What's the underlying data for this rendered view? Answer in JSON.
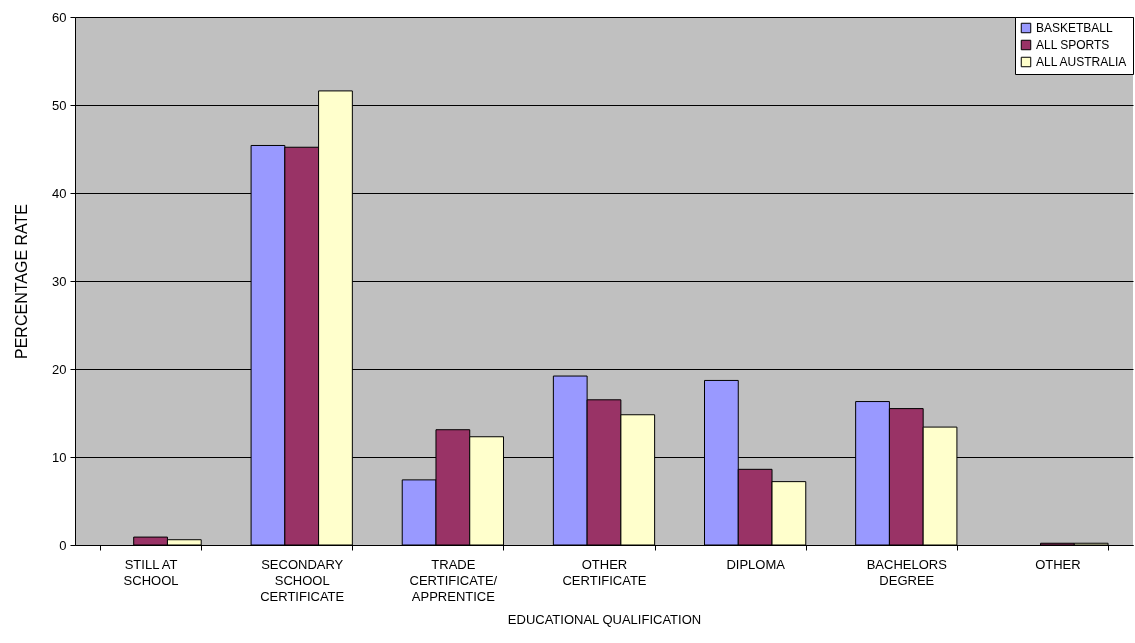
{
  "chart_data": {
    "type": "bar",
    "xlabel": "EDUCATIONAL QUALIFICATION",
    "ylabel": "PERCENTAGE RATE",
    "categories": [
      "STILL AT SCHOOL",
      "SECONDARY SCHOOL CERTIFICATE",
      "TRADE CERTIFICATE/APPRENTICE",
      "OTHER CERTIFICATE",
      "DIPLOMA",
      "BACHELORS DEGREE",
      "OTHER"
    ],
    "series": [
      {
        "name": "BASKETBALL",
        "color": "#9999ff",
        "values": [
          null,
          45.4,
          7.4,
          19.2,
          18.7,
          16.3,
          null
        ]
      },
      {
        "name": "ALL SPORTS",
        "color": "#993366",
        "values": [
          0.9,
          45.2,
          13.1,
          16.5,
          8.6,
          15.5,
          0.2
        ]
      },
      {
        "name": "ALL AUSTRALIA",
        "color": "#ffffcc",
        "values": [
          0.6,
          51.6,
          12.3,
          14.8,
          7.2,
          13.4,
          0.2
        ]
      }
    ],
    "ylim": [
      0,
      60
    ],
    "yticks": [
      0,
      10,
      20,
      30,
      40,
      50,
      60
    ],
    "grid": "y",
    "legend": "top right"
  }
}
